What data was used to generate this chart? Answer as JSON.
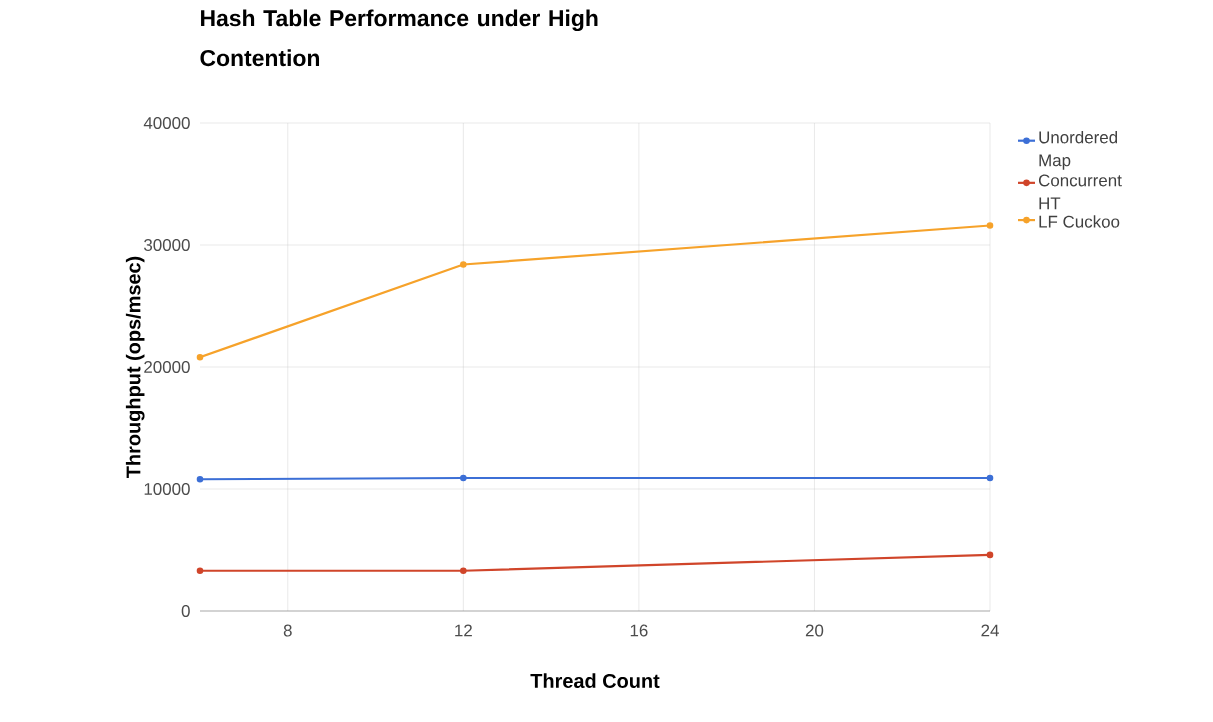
{
  "chart_data": {
    "type": "line",
    "title": "Hash Table Performance under High Contention",
    "xlabel": "Thread Count",
    "ylabel": "Throughput (ops/msec)",
    "x": [
      6,
      12,
      24
    ],
    "series": [
      {
        "name": "Unordered Map",
        "color": "#3c6fd6",
        "values": [
          10800,
          10900,
          10900
        ]
      },
      {
        "name": "Concurrent HT",
        "color": "#d0452a",
        "values": [
          3300,
          3300,
          4600
        ]
      },
      {
        "name": "LF Cuckoo",
        "color": "#f6a22a",
        "values": [
          20800,
          28400,
          31600
        ]
      }
    ],
    "xlim": [
      6,
      24
    ],
    "xticks": [
      8,
      12,
      16,
      20,
      24
    ],
    "ylim": [
      0,
      40000
    ],
    "yticks": [
      0,
      10000,
      20000,
      30000,
      40000
    ],
    "grid": true,
    "legend": "right",
    "marker": "circle",
    "line_style": "solid"
  }
}
